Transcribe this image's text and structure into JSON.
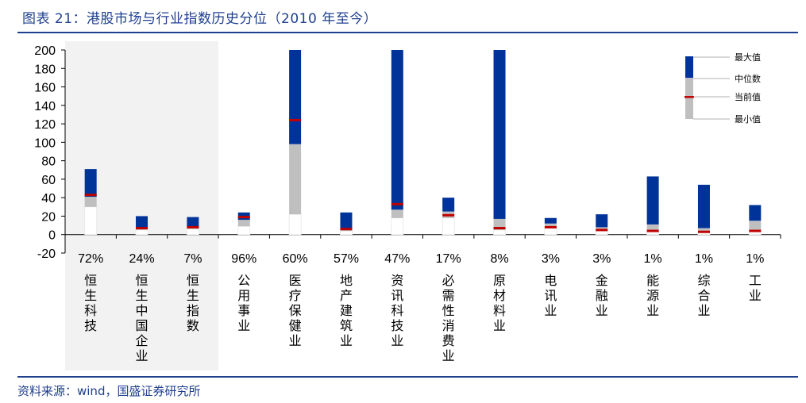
{
  "title": "图表 21：港股市场与行业指数历史分位（2010 年至今）",
  "source": "资料来源：wind，国盛证券研究所",
  "colors": {
    "upper": "#003399",
    "lower": "#bfbfbf",
    "current": "#c00000",
    "axis": "#000000",
    "highlight_bg": "#f2f2f2"
  },
  "chart_data": {
    "type": "bar",
    "subtype": "stacked-range (min / median / max with current marker)",
    "ylim": [
      -20,
      200
    ],
    "yticks": [
      -20,
      0,
      20,
      40,
      60,
      80,
      100,
      120,
      140,
      160,
      180,
      200
    ],
    "categories": [
      "恒生科技",
      "恒生中国企业",
      "恒生指数",
      "公用事业",
      "医疗保健业",
      "地产建筑业",
      "资讯科技业",
      "必需性消费业",
      "原材料业",
      "电讯业",
      "金融业",
      "能源业",
      "综合业",
      "工业"
    ],
    "percentiles": [
      "72%",
      "24%",
      "7%",
      "96%",
      "60%",
      "57%",
      "47%",
      "17%",
      "8%",
      "3%",
      "3%",
      "1%",
      "1%",
      "1%"
    ],
    "series": [
      {
        "name": "最小值",
        "values": [
          30,
          5,
          6,
          9,
          22,
          4,
          18,
          18,
          5,
          7,
          4,
          3,
          2,
          3
        ]
      },
      {
        "name": "中位数",
        "values": [
          41,
          8,
          8,
          16,
          98,
          7,
          27,
          25,
          17,
          12,
          8,
          11,
          7,
          15
        ]
      },
      {
        "name": "最大值",
        "values": [
          71,
          20,
          19,
          24,
          200,
          24,
          200,
          40,
          200,
          18,
          22,
          63,
          54,
          32
        ]
      },
      {
        "name": "当前值",
        "values": [
          43,
          7,
          8,
          19,
          124,
          6,
          33,
          21,
          7,
          8,
          5,
          4,
          3,
          4
        ]
      }
    ],
    "highlighted_categories": [
      "恒生科技",
      "恒生中国企业",
      "恒生指数"
    ],
    "legend": {
      "position": "top-right",
      "labels": [
        "最大值",
        "中位数",
        "当前值",
        "最小值"
      ]
    }
  }
}
